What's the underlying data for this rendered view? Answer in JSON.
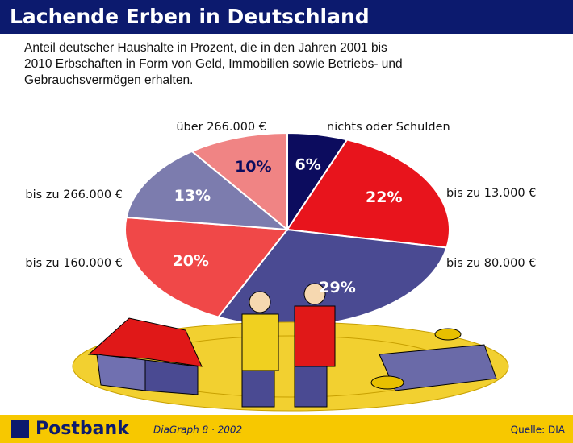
{
  "chart_data": {
    "type": "pie",
    "title": "Lachende Erben in Deutschland",
    "subtitle": "Anteil deutscher Haushalte in Prozent, die in den Jahren 2001 bis 2010 Erbschaften in Form von Geld, Immobilien sowie Betriebs- und Gebrauchsvermögen erhalten.",
    "categories": [
      "nichts oder Schulden",
      "bis zu 13.000 €",
      "bis zu 80.000 €",
      "bis zu 160.000 €",
      "bis zu 266.000 €",
      "über 266.000 €"
    ],
    "values": [
      6,
      22,
      29,
      20,
      13,
      10
    ],
    "value_labels": [
      "6%",
      "22%",
      "29%",
      "20%",
      "13%",
      "10%"
    ],
    "colors": [
      "#0c0c5e",
      "#e8141c",
      "#4a4a92",
      "#f04848",
      "#7c7cae",
      "#f08484"
    ]
  },
  "footer": {
    "brand": "Postbank",
    "edition": "DiaGraph 8 · 2002",
    "source": "Quelle: DIA"
  }
}
